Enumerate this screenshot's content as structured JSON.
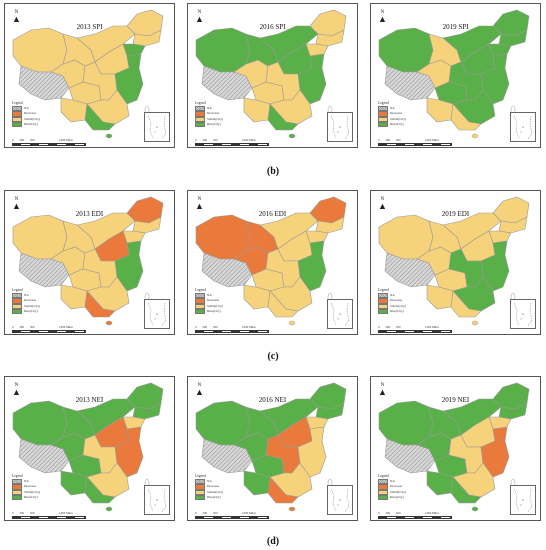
{
  "colors": {
    "na": "#d8d8d8",
    "decrease": "#ea7a3c",
    "stable": "#f6d27b",
    "rise": "#59b048",
    "border": "#9a9a9a"
  },
  "legend": {
    "title": "Legend",
    "items": [
      "NA",
      "Decrease",
      "Stable(City)",
      "Rise(City)"
    ]
  },
  "north": "N",
  "scale": [
    "0",
    "200",
    "500",
    "1,000 Miles"
  ],
  "captions": {
    "b": "(b)",
    "c": "(c)",
    "d": "(d)"
  },
  "panels": [
    {
      "title": "2013 SPI",
      "regions": {
        "xinjiang": "stable",
        "tibet": "na",
        "qinghai": "stable",
        "gansu": "stable",
        "neimenggu": "stable",
        "heilongjiang": "stable",
        "jilin": "stable",
        "liaoning": "rise",
        "sichuan": "stable",
        "yunnan": "stable",
        "north_china": "stable",
        "central": "stable",
        "east_coast": "rise",
        "south": "stable",
        "south_coast": "rise"
      }
    },
    {
      "title": "2016 SPI",
      "regions": {
        "xinjiang": "rise",
        "tibet": "na",
        "qinghai": "stable",
        "gansu": "rise",
        "neimenggu": "rise",
        "heilongjiang": "stable",
        "jilin": "stable",
        "liaoning": "stable",
        "sichuan": "stable",
        "yunnan": "stable",
        "north_china": "rise",
        "central": "stable",
        "east_coast": "rise",
        "south": "stable",
        "south_coast": "rise"
      }
    },
    {
      "title": "2019 SPI",
      "regions": {
        "xinjiang": "rise",
        "tibet": "na",
        "qinghai": "stable",
        "gansu": "stable",
        "neimenggu": "rise",
        "heilongjiang": "rise",
        "jilin": "rise",
        "liaoning": "rise",
        "sichuan": "rise",
        "yunnan": "stable",
        "north_china": "rise",
        "central": "rise",
        "east_coast": "rise",
        "south": "rise",
        "south_coast": "stable"
      }
    },
    {
      "title": "2013 EDI",
      "regions": {
        "xinjiang": "stable",
        "tibet": "na",
        "qinghai": "stable",
        "gansu": "stable",
        "neimenggu": "stable",
        "heilongjiang": "decrease",
        "jilin": "stable",
        "liaoning": "stable",
        "sichuan": "stable",
        "yunnan": "stable",
        "north_china": "decrease",
        "central": "stable",
        "east_coast": "rise",
        "south": "stable",
        "south_coast": "decrease"
      }
    },
    {
      "title": "2016 EDI",
      "regions": {
        "xinjiang": "decrease",
        "tibet": "na",
        "qinghai": "decrease",
        "gansu": "decrease",
        "neimenggu": "stable",
        "heilongjiang": "decrease",
        "jilin": "stable",
        "liaoning": "stable",
        "sichuan": "stable",
        "yunnan": "stable",
        "north_china": "stable",
        "central": "stable",
        "east_coast": "rise",
        "south": "stable",
        "south_coast": "stable"
      }
    },
    {
      "title": "2019 EDI",
      "regions": {
        "xinjiang": "stable",
        "tibet": "na",
        "qinghai": "stable",
        "gansu": "stable",
        "neimenggu": "stable",
        "heilongjiang": "stable",
        "jilin": "stable",
        "liaoning": "stable",
        "sichuan": "stable",
        "yunnan": "stable",
        "north_china": "stable",
        "central": "rise",
        "east_coast": "rise",
        "south": "rise",
        "south_coast": "stable"
      }
    },
    {
      "title": "2013 NEI",
      "regions": {
        "xinjiang": "rise",
        "tibet": "na",
        "qinghai": "rise",
        "gansu": "rise",
        "neimenggu": "rise",
        "heilongjiang": "rise",
        "jilin": "rise",
        "liaoning": "stable",
        "sichuan": "rise",
        "yunnan": "rise",
        "north_china": "decrease",
        "central": "stable",
        "east_coast": "decrease",
        "south": "stable",
        "south_coast": "rise"
      }
    },
    {
      "title": "2016 NEI",
      "regions": {
        "xinjiang": "rise",
        "tibet": "na",
        "qinghai": "rise",
        "gansu": "rise",
        "neimenggu": "rise",
        "heilongjiang": "rise",
        "jilin": "rise",
        "liaoning": "stable",
        "sichuan": "rise",
        "yunnan": "rise",
        "north_china": "decrease",
        "central": "decrease",
        "east_coast": "stable",
        "south": "stable",
        "south_coast": "decrease"
      }
    },
    {
      "title": "2019 NEI",
      "regions": {
        "xinjiang": "rise",
        "tibet": "na",
        "qinghai": "rise",
        "gansu": "rise",
        "neimenggu": "rise",
        "heilongjiang": "rise",
        "jilin": "rise",
        "liaoning": "stable",
        "sichuan": "rise",
        "yunnan": "rise",
        "north_china": "stable",
        "central": "stable",
        "east_coast": "decrease",
        "south": "stable",
        "south_coast": "rise"
      }
    }
  ]
}
